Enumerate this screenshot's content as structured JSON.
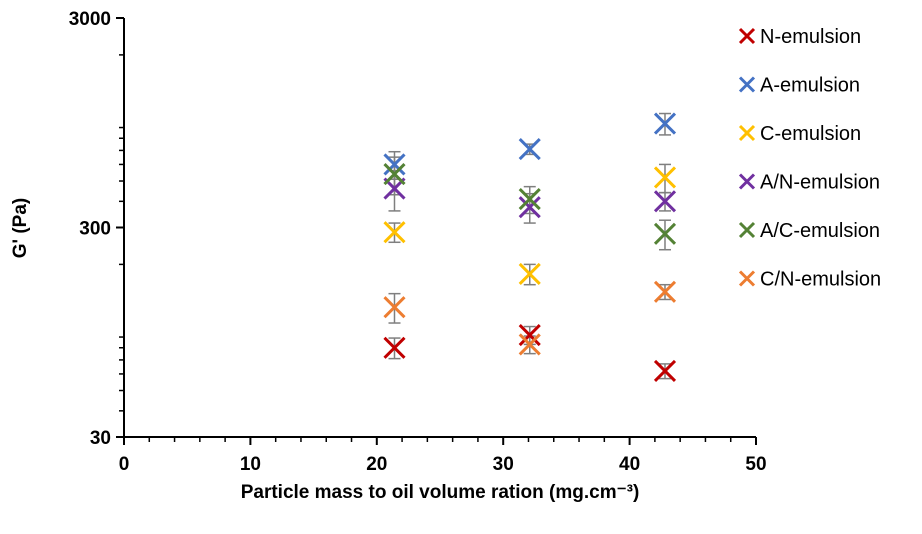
{
  "chart_data": {
    "type": "scatter",
    "title": "",
    "xlabel": "Particle mass to oil volume ration (mg.cm⁻³)",
    "ylabel": "G' (Pa)",
    "xlim": [
      0,
      50
    ],
    "ylim": [
      30,
      3000
    ],
    "y_scale": "log",
    "x_ticks": [
      "0",
      "10",
      "20",
      "30",
      "40",
      "50"
    ],
    "y_ticks": [
      "30",
      "300",
      "3000"
    ],
    "grid": false,
    "legend_position": "right",
    "marker": "x",
    "series": [
      {
        "name": "N-emulsion",
        "color": "#C00000",
        "points": [
          {
            "x": 21.4,
            "y": 80,
            "err": 9
          },
          {
            "x": 32.1,
            "y": 92,
            "err": 9
          },
          {
            "x": 42.8,
            "y": 62,
            "err": 5
          }
        ]
      },
      {
        "name": "A-emulsion",
        "color": "#4472C4",
        "points": [
          {
            "x": 21.4,
            "y": 600,
            "err": 90
          },
          {
            "x": 32.1,
            "y": 710,
            "err": 40
          },
          {
            "x": 42.8,
            "y": 940,
            "err": 110
          }
        ]
      },
      {
        "name": "C-emulsion",
        "color": "#FFC000",
        "points": [
          {
            "x": 21.4,
            "y": 285,
            "err": 30
          },
          {
            "x": 32.1,
            "y": 180,
            "err": 20
          },
          {
            "x": 42.8,
            "y": 520,
            "err": 80
          }
        ]
      },
      {
        "name": "A/N-emulsion",
        "color": "#7030A0",
        "points": [
          {
            "x": 21.4,
            "y": 460,
            "err": 100
          },
          {
            "x": 32.1,
            "y": 375,
            "err": 60
          },
          {
            "x": 42.8,
            "y": 400,
            "err": 40
          }
        ]
      },
      {
        "name": "A/C-emulsion",
        "color": "#548235",
        "points": [
          {
            "x": 21.4,
            "y": 540,
            "err": 110
          },
          {
            "x": 32.1,
            "y": 410,
            "err": 60
          },
          {
            "x": 42.8,
            "y": 280,
            "err": 45
          }
        ]
      },
      {
        "name": "C/N-emulsion",
        "color": "#ED7D31",
        "points": [
          {
            "x": 21.4,
            "y": 125,
            "err": 20
          },
          {
            "x": 32.1,
            "y": 83,
            "err": 8
          },
          {
            "x": 42.8,
            "y": 148,
            "err": 12
          }
        ]
      }
    ]
  }
}
